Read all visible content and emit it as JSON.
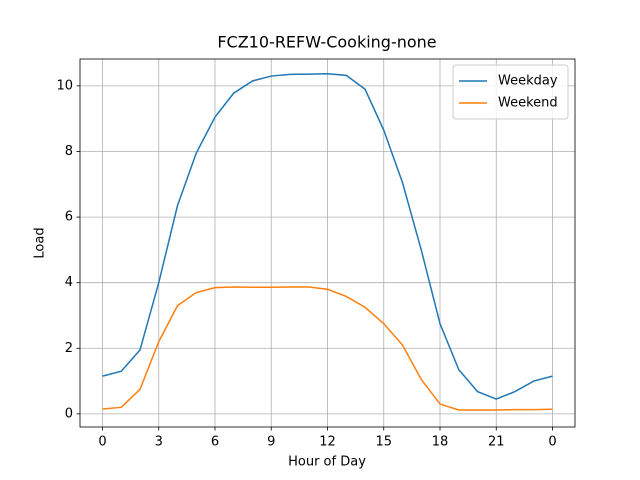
{
  "chart_data": {
    "type": "line",
    "title": "FCZ10-REFW-Cooking-none",
    "xlabel": "Hour of Day",
    "ylabel": "Load",
    "x": [
      0,
      1,
      2,
      3,
      4,
      5,
      6,
      7,
      8,
      9,
      10,
      11,
      12,
      13,
      14,
      15,
      16,
      17,
      18,
      19,
      20,
      21,
      22,
      23,
      24
    ],
    "series": [
      {
        "name": "Weekday",
        "color": "#1f77b4",
        "values": [
          1.15,
          1.3,
          1.95,
          4.0,
          6.35,
          7.95,
          9.05,
          9.78,
          10.15,
          10.3,
          10.35,
          10.36,
          10.37,
          10.32,
          9.9,
          8.65,
          7.05,
          5.0,
          2.75,
          1.35,
          0.68,
          0.45,
          0.68,
          1.0,
          1.15
        ]
      },
      {
        "name": "Weekend",
        "color": "#ff7f0e",
        "values": [
          0.15,
          0.2,
          0.75,
          2.2,
          3.3,
          3.7,
          3.85,
          3.87,
          3.86,
          3.86,
          3.87,
          3.87,
          3.8,
          3.58,
          3.25,
          2.75,
          2.1,
          1.05,
          0.3,
          0.12,
          0.12,
          0.12,
          0.13,
          0.13,
          0.14
        ]
      }
    ],
    "xlim": [
      -1.2,
      25.2
    ],
    "xticks": [
      0,
      3,
      6,
      9,
      12,
      15,
      18,
      21,
      {
        "value": 24,
        "label": "0"
      }
    ],
    "ylim": [
      -0.4,
      10.82
    ],
    "yticks": [
      0,
      2,
      4,
      6,
      8,
      10
    ],
    "grid": true,
    "legend": "upper right"
  }
}
